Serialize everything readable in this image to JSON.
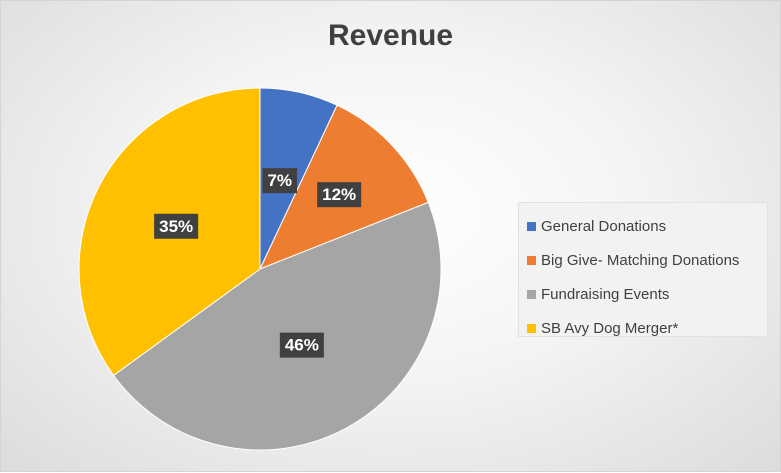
{
  "chart_data": {
    "type": "pie",
    "title": "Revenue",
    "categories": [
      "General Donations",
      "Big Give- Matching Donations",
      "Fundraising Events",
      "SB Avy Dog Merger*"
    ],
    "values": [
      7,
      12,
      46,
      35
    ],
    "labels": [
      "7%",
      "12%",
      "46%",
      "35%"
    ],
    "colors": [
      "#4472C4",
      "#ED7D31",
      "#A5A5A5",
      "#FFC000"
    ],
    "legend_position": "right"
  }
}
